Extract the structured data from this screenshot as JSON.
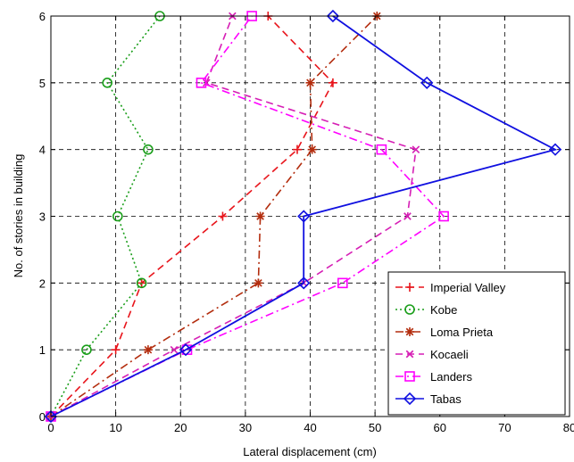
{
  "chart_data": {
    "type": "line",
    "xlabel": "Lateral displacement (cm)",
    "ylabel": "No. of stories in building",
    "xlim": [
      0,
      80
    ],
    "ylim": [
      0,
      6
    ],
    "xticks": [
      "0",
      "10",
      "20",
      "30",
      "40",
      "50",
      "60",
      "70",
      "80"
    ],
    "yticks": [
      "0",
      "1",
      "2",
      "3",
      "4",
      "5",
      "6"
    ],
    "grid": true,
    "legend_position": "bottom-right",
    "series": [
      {
        "name": "Imperial Valley",
        "color": "#e8141b",
        "line_style": "dashed",
        "marker": "plus",
        "x": [
          0,
          10,
          14,
          26.5,
          38,
          43.5,
          33.5
        ],
        "y": [
          0,
          1,
          2,
          3,
          4,
          5,
          6
        ]
      },
      {
        "name": "Kobe",
        "color": "#1a9e1a",
        "line_style": "dotted",
        "marker": "circle",
        "x": [
          0,
          5.5,
          14,
          10.3,
          15,
          8.7,
          16.8
        ],
        "y": [
          0,
          1,
          2,
          3,
          4,
          5,
          6
        ]
      },
      {
        "name": "Loma Prieta",
        "color": "#b32d0e",
        "line_style": "dashdot",
        "marker": "star",
        "x": [
          0,
          15,
          32,
          32.3,
          40.3,
          40,
          50.3
        ],
        "y": [
          0,
          1,
          2,
          3,
          4,
          5,
          6
        ]
      },
      {
        "name": "Kocaeli",
        "color": "#d61fb5",
        "line_style": "dashed",
        "marker": "x",
        "x": [
          0,
          19,
          39,
          55,
          56.3,
          24,
          28
        ],
        "y": [
          0,
          1,
          2,
          3,
          4,
          5,
          6
        ]
      },
      {
        "name": "Landers",
        "color": "#ff00ff",
        "line_style": "dashdot",
        "marker": "square",
        "x": [
          0,
          21,
          45,
          60.6,
          51,
          23.2,
          31
        ],
        "y": [
          0,
          1,
          2,
          3,
          4,
          5,
          6
        ]
      },
      {
        "name": "Tabas",
        "color": "#1010e0",
        "line_style": "solid",
        "marker": "diamond",
        "x": [
          0,
          20.8,
          39,
          39,
          77.8,
          58,
          43.5
        ],
        "y": [
          0,
          1,
          2,
          3,
          4,
          5,
          6
        ]
      }
    ]
  }
}
